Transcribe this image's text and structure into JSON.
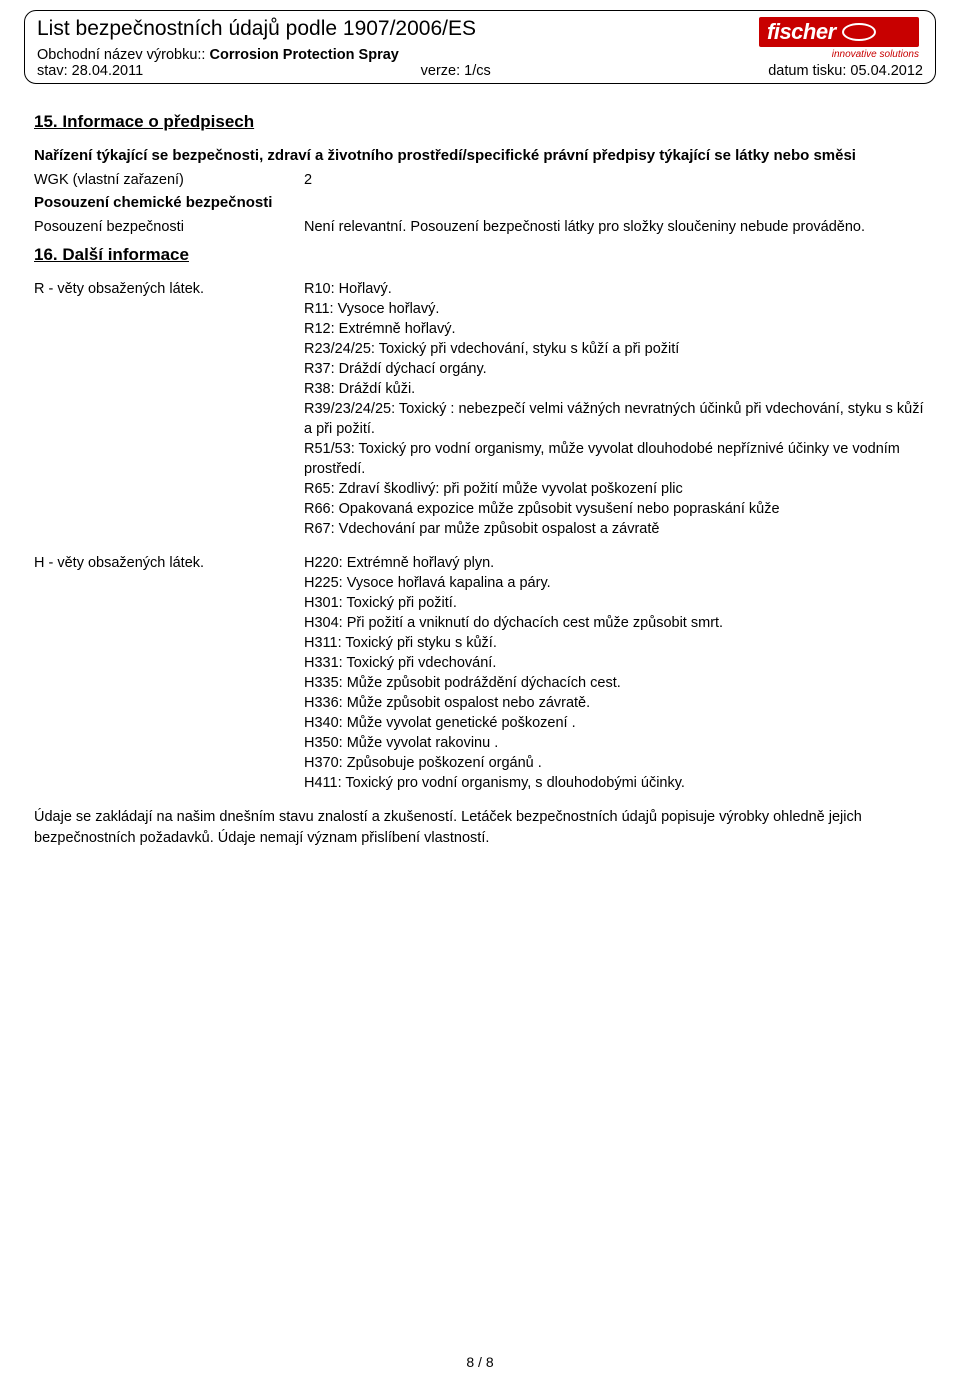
{
  "header": {
    "title": "List bezpečnostních údajů podle 1907/2006/ES",
    "product_label": "Obchodní název výrobku::",
    "product_name": "Corrosion Protection Spray",
    "status_label": "stav:",
    "status_value": "28.04.2011",
    "version_label": "verze:",
    "version_value": "1/cs",
    "print_label": "datum tisku:",
    "print_value": "05.04.2012",
    "logo_text": "fischer",
    "logo_slogan": "innovative solutions"
  },
  "sections": {
    "s15": {
      "heading": "15. Informace o předpisech",
      "subheading": "Nařízení týkající se bezpečnosti, zdraví a životního prostředí/specifické právní předpisy týkající se látky nebo směsi",
      "wgk_label": "WGK (vlastní zařazení)",
      "wgk_value": "2",
      "assessment_heading": "Posouzení chemické bezpečnosti",
      "assessment_label": "Posouzení bezpečnosti",
      "assessment_value": "Není relevantní. Posouzení bezpečnosti látky pro složky sloučeniny nebude prováděno."
    },
    "s16": {
      "heading": "16. Další informace",
      "r_label": "R - věty obsažených látek.",
      "r_phrases": [
        "R10: Hořlavý.",
        "R11: Vysoce hořlavý.",
        "R12: Extrémně hořlavý.",
        "R23/24/25: Toxický při vdechování, styku s kůží a při požití",
        "R37: Dráždí dýchací orgány.",
        "R38: Dráždí kůži.",
        "R39/23/24/25: Toxický : nebezpečí velmi vážných nevratných účinků při vdechování, styku s kůží a při požití.",
        "R51/53: Toxický pro vodní organismy, může vyvolat dlouhodobé nepříznivé účinky ve vodním prostředí.",
        "R65: Zdraví škodlivý: při požití může vyvolat poškození plic",
        "R66: Opakovaná expozice může způsobit vysušení nebo popraskání kůže",
        "R67: Vdechování par může způsobit ospalost a závratě"
      ],
      "h_label": "H - věty obsažených látek.",
      "h_phrases": [
        "H220: Extrémně hořlavý plyn.",
        "H225: Vysoce hořlavá kapalina a páry.",
        "H301: Toxický při požití.",
        "H304: Při požití a vniknutí do dýchacích cest může způsobit smrt.",
        "H311: Toxický při styku s kůží.",
        "H331: Toxický při vdechování.",
        "H335: Může způsobit podráždění dýchacích cest.",
        "H336: Může způsobit ospalost nebo závratě.",
        "H340: Může vyvolat genetické poškození .",
        "H350: Může vyvolat rakovinu .",
        "H370: Způsobuje poškození orgánů .",
        "H411: Toxický pro vodní organismy, s dlouhodobými účinky."
      ],
      "footer": "Údaje se zakládají na našim dnešním stavu znalostí a zkušeností. Letáček bezpečnostních údajů popisuje výrobky ohledně jejich bezpečnostních požadavků. Údaje nemají význam přislíbení vlastností."
    }
  },
  "page_number": "8 / 8"
}
